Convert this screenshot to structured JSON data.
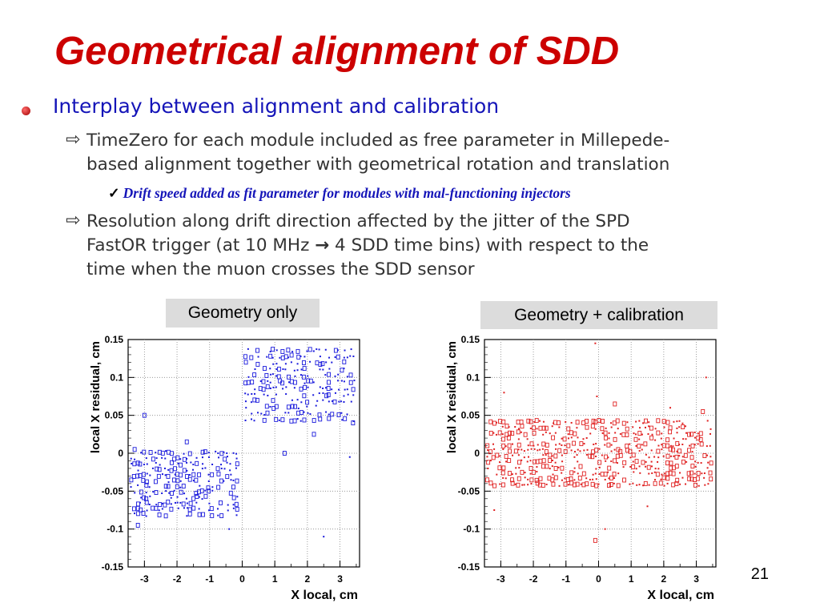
{
  "title": "Geometrical alignment of SDD",
  "bullet1": "Interplay between alignment and calibration",
  "sub1": {
    "line1": "TimeZero for each module included as free parameter in Millepede-",
    "line2": "based alignment together with geometrical rotation and translation"
  },
  "check1": "Drift speed added as fit parameter for modules with mal-functioning injectors",
  "sub2": {
    "line1": "Resolution along drift direction affected by the jitter of the SPD",
    "line2a": "FastOR trigger (at 10 MHz ",
    "arrow": "→",
    "line2b": " 4 SDD time bins) with respect to the",
    "line3": "time when the muon crosses the SDD sensor"
  },
  "page_number": "21",
  "colors": {
    "title": "#cc0000",
    "bullet": "#1414b8",
    "series_left": "#1a1adc",
    "series_right": "#e02020",
    "label_bg": "#dcdcdc"
  },
  "chart_data": [
    {
      "type": "scatter",
      "title": "Geometry only",
      "xlabel": "X local, cm",
      "ylabel": "local X residual, cm",
      "xlim": [
        -3.5,
        3.6
      ],
      "ylim": [
        -0.15,
        0.15
      ],
      "xticks": [
        -3,
        -2,
        -1,
        0,
        1,
        2,
        3
      ],
      "xtick_labels": [
        "-3",
        "-2",
        "-1",
        "0",
        "1",
        "2",
        "3"
      ],
      "yticks": [
        -0.15,
        -0.1,
        -0.05,
        0,
        0.05,
        0.1,
        0.15
      ],
      "ytick_labels": [
        "-0.15",
        "-0.1",
        "-0.05",
        "0",
        "0.05",
        "0.1",
        "0.15"
      ],
      "grid": true,
      "series": [
        {
          "description": "x<0 region",
          "x_range": [
            -3.4,
            -0.1
          ],
          "y_band": [
            -0.085,
            0.005
          ]
        },
        {
          "description": "x>0 region",
          "x_range": [
            0.1,
            3.5
          ],
          "y_band": [
            0.04,
            0.14
          ]
        }
      ],
      "outliers": [
        {
          "x": -3.3,
          "y": 0.005
        },
        {
          "x": -3.2,
          "y": -0.095
        },
        {
          "x": -3.0,
          "y": 0.05
        },
        {
          "x": -1.7,
          "y": 0.015
        },
        {
          "x": -0.4,
          "y": -0.1
        },
        {
          "x": 0.1,
          "y": 0.15
        },
        {
          "x": 1.3,
          "y": 0.0
        },
        {
          "x": 2.5,
          "y": -0.11
        },
        {
          "x": 2.2,
          "y": 0.025
        },
        {
          "x": 3.3,
          "y": -0.005
        },
        {
          "x": 3.4,
          "y": 0.04
        }
      ]
    },
    {
      "type": "scatter",
      "title": "Geometry + calibration",
      "xlabel": "X local, cm",
      "ylabel": "local X residual, cm",
      "xlim": [
        -3.5,
        3.6
      ],
      "ylim": [
        -0.15,
        0.15
      ],
      "xticks": [
        -3,
        -2,
        -1,
        0,
        1,
        2,
        3
      ],
      "xtick_labels": [
        "-3",
        "-2",
        "-1",
        "0",
        "1",
        "2",
        "3"
      ],
      "yticks": [
        -0.15,
        -0.1,
        -0.05,
        0,
        0.05,
        0.1,
        0.15
      ],
      "ytick_labels": [
        "-0.15",
        "-0.1",
        "-0.05",
        "0",
        "0.05",
        "0.1",
        "0.15"
      ],
      "grid": true,
      "series": [
        {
          "description": "all modules",
          "x_range": [
            -3.4,
            3.5
          ],
          "y_band": [
            -0.045,
            0.045
          ]
        }
      ],
      "outliers": [
        {
          "x": -0.1,
          "y": 0.145
        },
        {
          "x": 3.3,
          "y": 0.1
        },
        {
          "x": -3.2,
          "y": -0.075
        },
        {
          "x": -2.9,
          "y": 0.08
        },
        {
          "x": -0.1,
          "y": -0.115
        },
        {
          "x": 0.2,
          "y": -0.1
        },
        {
          "x": 1.5,
          "y": -0.07
        },
        {
          "x": 0.5,
          "y": 0.065
        },
        {
          "x": 2.2,
          "y": 0.06
        },
        {
          "x": -0.05,
          "y": 0.075
        },
        {
          "x": 3.2,
          "y": 0.055
        }
      ]
    }
  ]
}
